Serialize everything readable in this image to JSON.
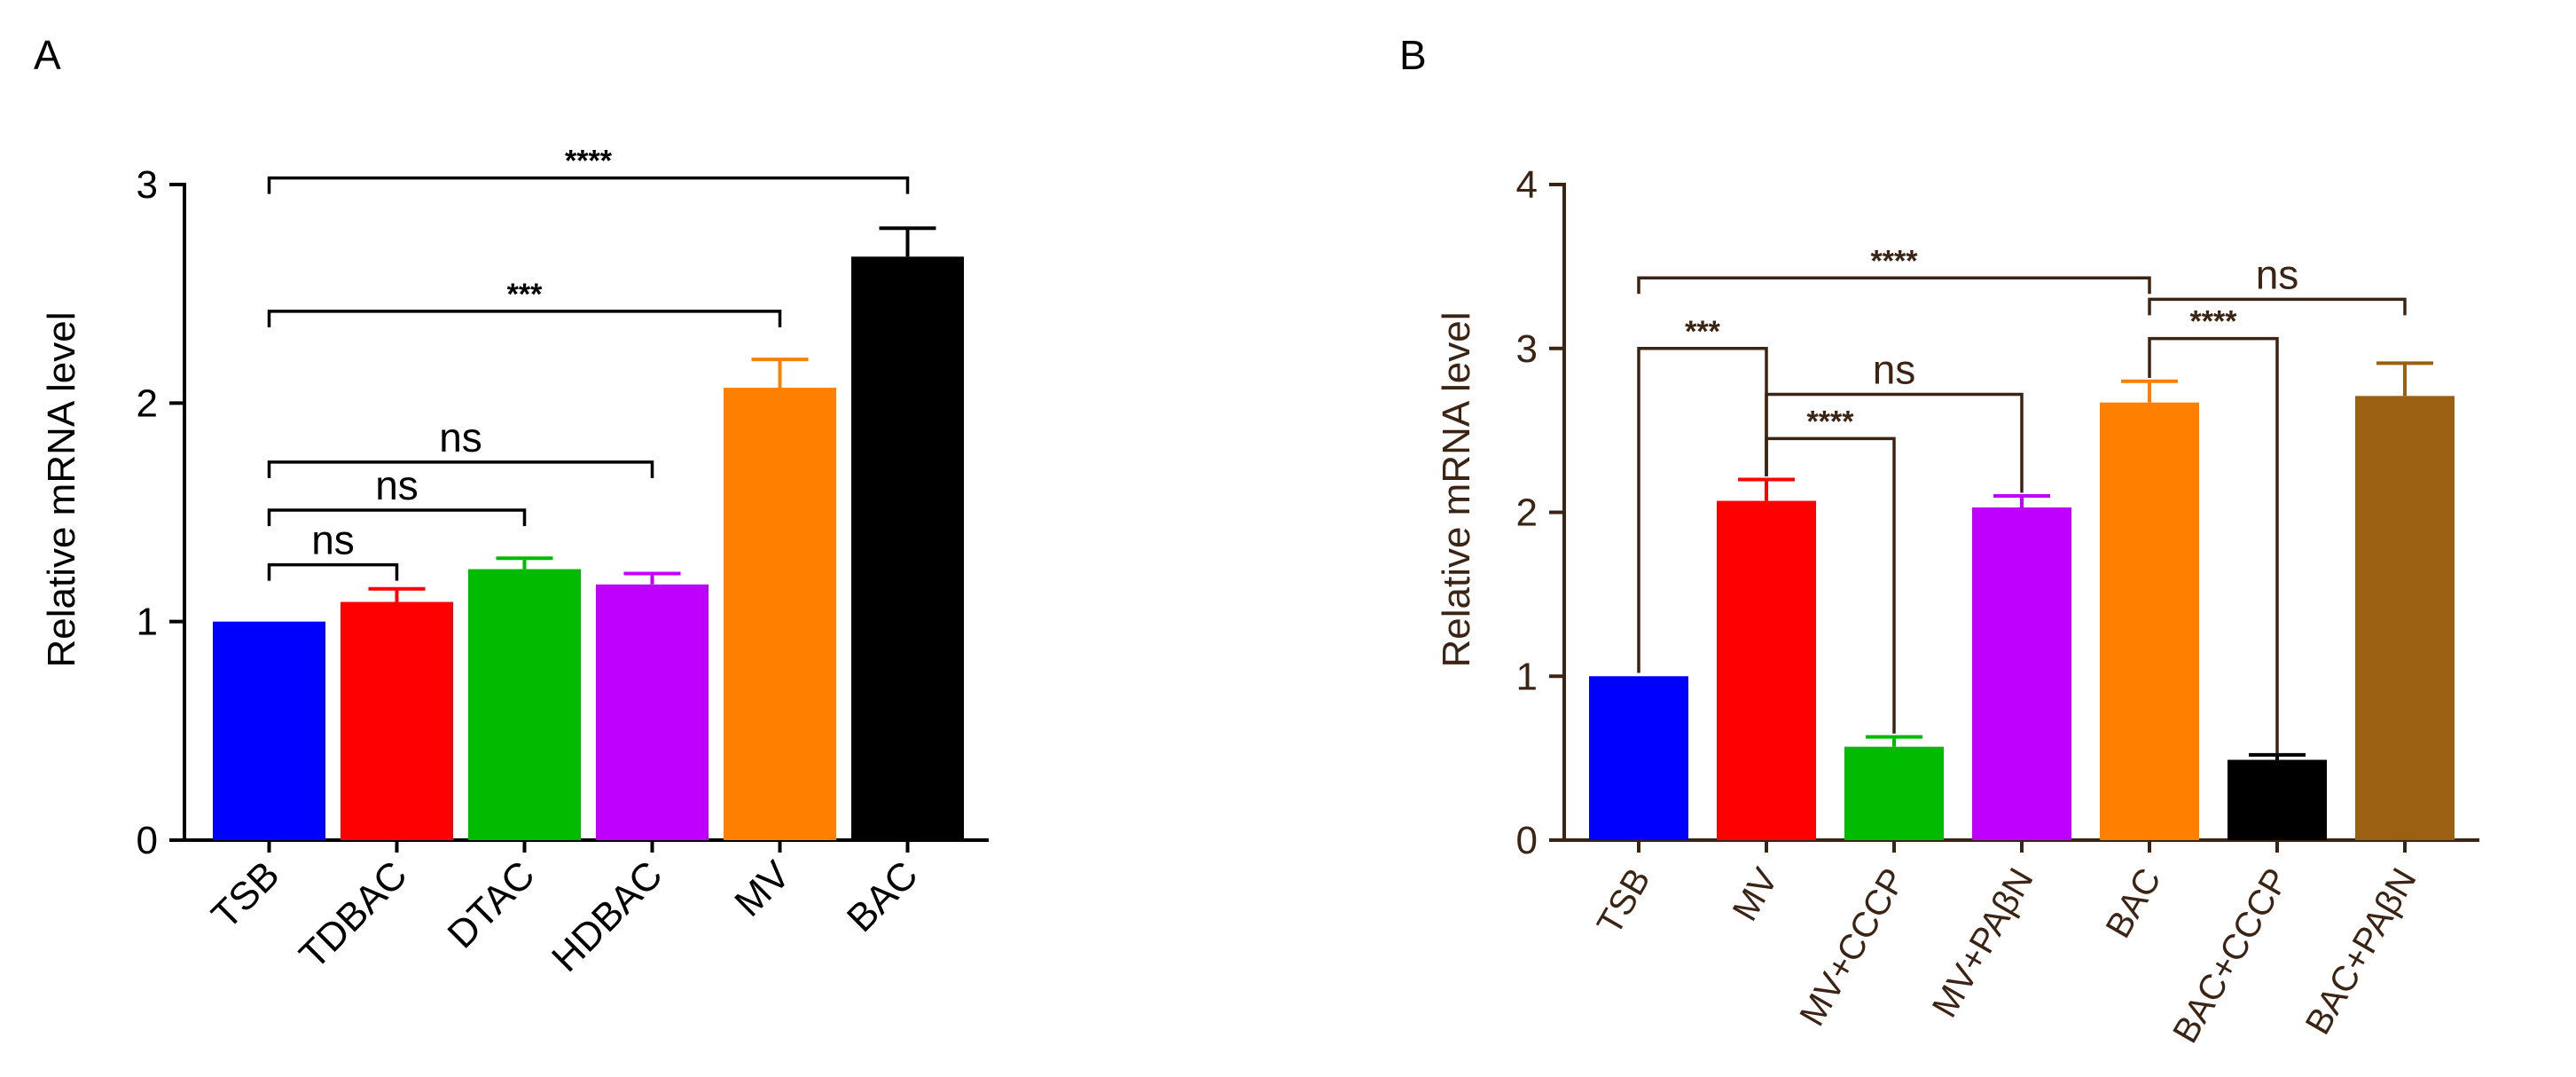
{
  "chart_data": [
    {
      "panel_label": "A",
      "type": "bar",
      "ylabel": "Relative mRNA level",
      "ylim": [
        0,
        3
      ],
      "yticks": [
        0,
        1,
        2,
        3
      ],
      "tick_labels": [
        "0",
        "1",
        "2",
        "3"
      ],
      "categories": [
        "TSB",
        "TDBAC",
        "DTAC",
        "HDBAC",
        "MV",
        "BAC"
      ],
      "values": [
        1.0,
        1.09,
        1.24,
        1.17,
        2.07,
        2.67
      ],
      "errors": [
        0,
        0.06,
        0.05,
        0.05,
        0.13,
        0.13
      ],
      "colors": [
        "#0000ff",
        "#ff0000",
        "#00bb00",
        "#c000ff",
        "#ff8000",
        "#000000"
      ],
      "axis_color": "#000000",
      "label_color": "#000000",
      "comparisons": [
        {
          "from": 0,
          "to": 1,
          "label": "ns",
          "y": 1.26,
          "large": true
        },
        {
          "from": 0,
          "to": 2,
          "label": "ns",
          "y": 1.51,
          "large": true
        },
        {
          "from": 0,
          "to": 3,
          "label": "ns",
          "y": 1.73,
          "large": true
        },
        {
          "from": 0,
          "to": 4,
          "label": "***",
          "y": 2.42,
          "large": false
        },
        {
          "from": 0,
          "to": 5,
          "label": "****",
          "y": 3.03,
          "large": false
        }
      ]
    },
    {
      "panel_label": "B",
      "type": "bar",
      "ylabel": "Relative mRNA level",
      "ylim": [
        0,
        4
      ],
      "yticks": [
        0,
        1,
        2,
        3,
        4
      ],
      "tick_labels": [
        "0",
        "1",
        "2",
        "3",
        "4"
      ],
      "categories": [
        "TSB",
        "MV",
        "MV+CCCP",
        "MV+PAβN",
        "BAC",
        "BAC+CCCP",
        "BAC+PAβN"
      ],
      "values": [
        1.0,
        2.07,
        0.57,
        2.03,
        2.67,
        0.49,
        2.71
      ],
      "errors": [
        0,
        0.13,
        0.06,
        0.07,
        0.13,
        0.03,
        0.2
      ],
      "colors": [
        "#0000ff",
        "#ff0000",
        "#00bb00",
        "#c000ff",
        "#ff8000",
        "#000000",
        "#9c6012"
      ],
      "axis_color": "#3c2415",
      "label_color": "#3c2415",
      "comparisons": [
        {
          "from": 0,
          "to": 1,
          "label": "***",
          "y": 3.0,
          "drop_from": 1.02,
          "drop_to": 2.22,
          "large": false
        },
        {
          "from": 1,
          "to": 3,
          "label": "ns",
          "y": 2.72,
          "drop_from": 2.22,
          "drop_to": 2.12,
          "large": true
        },
        {
          "from": 1,
          "to": 2,
          "label": "****",
          "y": 2.45,
          "drop_from": 2.22,
          "drop_to": 0.65,
          "large": false
        },
        {
          "from": 0,
          "to": 4,
          "label": "****",
          "y": 3.43,
          "large": false
        },
        {
          "from": 4,
          "to": 6,
          "label": "ns",
          "y": 3.3,
          "large": true
        },
        {
          "from": 4,
          "to": 5,
          "label": "****",
          "y": 3.06,
          "drop_from": 2.82,
          "drop_to": 0.53,
          "large": false
        }
      ]
    }
  ]
}
